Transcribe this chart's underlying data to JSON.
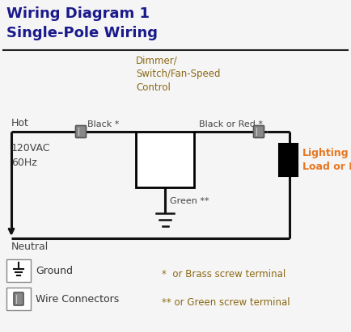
{
  "title_line1": "Wiring Diagram 1",
  "title_line2": "Single-Pole Wiring",
  "title_color": "#1a1a8c",
  "bg_color": "#f5f5f5",
  "wire_color": "#111111",
  "dimmer_label": "Dimmer/\nSwitch/Fan-Speed\nControl",
  "dimmer_label_color": "#8B6914",
  "hot_label": "Hot",
  "neutral_label": "Neutral",
  "black_label": "Black *",
  "black_or_red_label": "Black or Red *",
  "green_label": "Green **",
  "vac_label": "120VAC\n60Hz",
  "load_label": "Lighting\nLoad or Fan",
  "load_color": "#E87722",
  "ground_label": "Ground",
  "wire_connectors_label": "Wire Connectors",
  "footnote1": "*  or Brass screw terminal",
  "footnote2": "** or Green screw terminal",
  "footnote_color": "#8B6914"
}
